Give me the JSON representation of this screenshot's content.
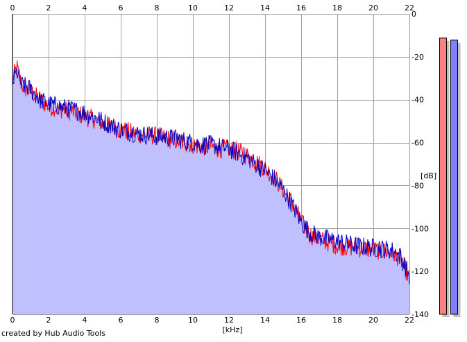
{
  "credit": "created by Hub Audio Tools",
  "chart_data": {
    "type": "area",
    "title": "",
    "xlabel": "[kHz]",
    "ylabel": "[dB]",
    "xlim": [
      0,
      22
    ],
    "ylim": [
      -140,
      0
    ],
    "x_ticks": [
      0,
      2,
      4,
      6,
      8,
      10,
      12,
      14,
      16,
      18,
      20,
      22
    ],
    "y_ticks": [
      0,
      -20,
      -40,
      -60,
      -80,
      -100,
      -120,
      -140
    ],
    "grid": true,
    "x_axis_positions": [
      "top",
      "bottom"
    ],
    "y_axis_position": "right",
    "colors": {
      "background": "#ffffff",
      "fill": "#c0c0ff",
      "grid": "#a0a0a0",
      "left": "#ff0000",
      "right": "#0000c8",
      "meter_left": "#ff8080",
      "meter_right": "#8080ff",
      "meter_shadow": "#c0c0c0"
    },
    "series": [
      {
        "x": [
          0,
          0.25,
          0.5,
          0.75,
          1,
          1.5,
          2,
          2.5,
          3,
          3.5,
          4,
          4.5,
          5,
          5.5,
          6,
          7,
          8,
          9,
          9.5,
          10,
          10.5,
          11,
          11.5,
          12,
          12.5,
          13,
          13.5,
          14,
          14.5,
          15,
          15.5,
          16,
          16.5,
          17,
          18,
          19,
          20,
          21,
          21.5,
          22
        ],
        "values": [
          -30,
          -25,
          -33,
          -35,
          -36,
          -40,
          -43,
          -44,
          -45,
          -46,
          -48,
          -49,
          -51,
          -53,
          -54,
          -56,
          -57,
          -59,
          -60,
          -61,
          -62,
          -62,
          -63,
          -63,
          -64,
          -66,
          -69,
          -72,
          -76,
          -82,
          -88,
          -97,
          -103,
          -105,
          -108,
          -109,
          -110,
          -111,
          -114,
          -123
        ]
      },
      {
        "x": [
          0,
          0.25,
          0.5,
          0.75,
          1,
          1.5,
          2,
          2.5,
          3,
          3.5,
          4,
          4.5,
          5,
          5.5,
          6,
          7,
          8,
          9,
          9.5,
          10,
          10.5,
          11,
          11.5,
          12,
          12.5,
          13,
          13.5,
          14,
          14.5,
          15,
          15.5,
          16,
          16.5,
          17,
          18,
          19,
          20,
          21,
          21.5,
          22
        ],
        "values": [
          -32,
          -27,
          -33,
          -34,
          -35,
          -40,
          -42,
          -43,
          -44,
          -45,
          -46,
          -48,
          -50,
          -52,
          -54,
          -56,
          -57,
          -58,
          -59,
          -60,
          -61,
          -61,
          -62,
          -63,
          -65,
          -67,
          -70,
          -73,
          -77,
          -82,
          -89,
          -97,
          -102,
          -104,
          -106,
          -108,
          -109,
          -110,
          -113,
          -122
        ]
      }
    ],
    "level_meter": {
      "left": -6,
      "right": -7
    }
  }
}
